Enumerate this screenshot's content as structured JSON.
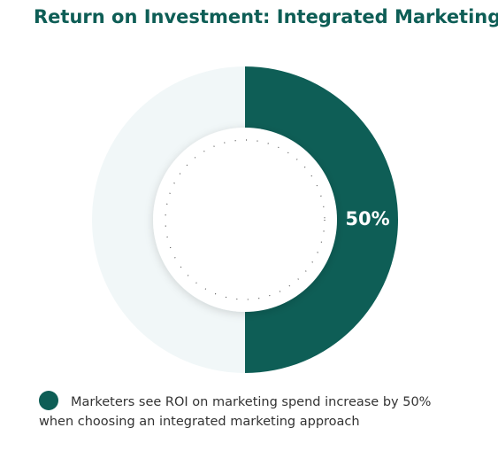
{
  "chart_data": {
    "type": "donut",
    "title": "Return on Investment: Integrated Marketing",
    "categories": [
      "Marketers see ROI on marketing spend increase by 50% when choosing an integrated marketing approach",
      null
    ],
    "values": [
      50,
      50
    ],
    "value_labels": [
      "50%",
      null
    ],
    "colors": [
      "#0e5e56",
      "#f1f7f8"
    ]
  }
}
